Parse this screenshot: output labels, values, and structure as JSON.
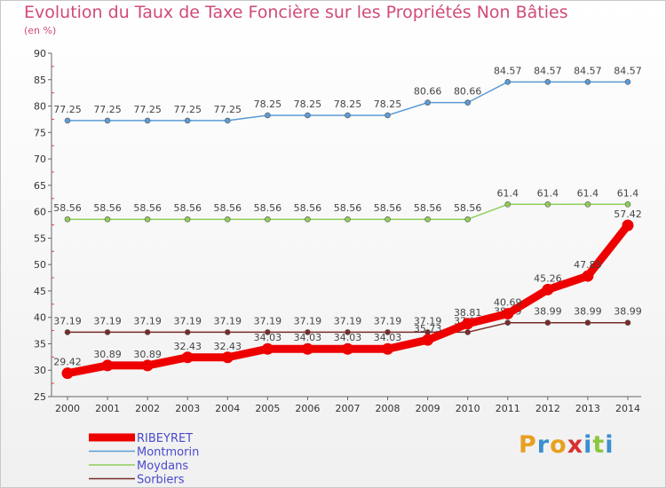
{
  "title": "Evolution du Taux de Taxe Foncière sur les Propriétés Non Bâties",
  "subtitle": "(en %)",
  "logo": {
    "text": "Proxiti",
    "letter_colors": [
      "#e8a020",
      "#3a8fd0",
      "#e8a020",
      "#d83030",
      "#3a8fd0",
      "#8cc63f",
      "#3a8fd0"
    ]
  },
  "chart_data": {
    "type": "line",
    "x": [
      "2000",
      "2001",
      "2002",
      "2003",
      "2004",
      "2005",
      "2006",
      "2007",
      "2008",
      "2009",
      "2010",
      "2011",
      "2012",
      "2013",
      "2014"
    ],
    "ylim": [
      25,
      90
    ],
    "yticks": [
      "25",
      "30",
      "35",
      "40",
      "45",
      "50",
      "55",
      "60",
      "65",
      "70",
      "75",
      "80",
      "85",
      "90"
    ],
    "grid": false,
    "legend_position": "bottom-left",
    "series": [
      {
        "name": "Montmorin",
        "color": "#5b9bd5",
        "values": [
          77.25,
          77.25,
          77.25,
          77.25,
          77.25,
          78.25,
          78.25,
          78.25,
          78.25,
          80.66,
          80.66,
          84.57,
          84.57,
          84.57,
          84.57
        ],
        "labels": [
          "77.25",
          "77.25",
          "77.25",
          "77.25",
          "77.25",
          "78.25",
          "78.25",
          "78.25",
          "78.25",
          "80.66",
          "80.66",
          "84.57",
          "84.57",
          "84.57",
          "84.57"
        ]
      },
      {
        "name": "Moydans",
        "color": "#8fce5a",
        "values": [
          58.56,
          58.56,
          58.56,
          58.56,
          58.56,
          58.56,
          58.56,
          58.56,
          58.56,
          58.56,
          58.56,
          61.4,
          61.4,
          61.4,
          61.4
        ],
        "labels": [
          "58.56",
          "58.56",
          "58.56",
          "58.56",
          "58.56",
          "58.56",
          "58.56",
          "58.56",
          "58.56",
          "58.56",
          "58.56",
          "61.4",
          "61.4",
          "61.4",
          "61.4"
        ]
      },
      {
        "name": "Sorbiers",
        "color": "#7a2a2a",
        "values": [
          37.19,
          37.19,
          37.19,
          37.19,
          37.19,
          37.19,
          37.19,
          37.19,
          37.19,
          37.19,
          37.19,
          38.99,
          38.99,
          38.99,
          38.99
        ],
        "labels": [
          "37.19",
          "37.19",
          "37.19",
          "37.19",
          "37.19",
          "37.19",
          "37.19",
          "37.19",
          "37.19",
          "37.19",
          "37.19",
          "38.99",
          "38.99",
          "38.99",
          "38.99"
        ]
      },
      {
        "name": "RIBEYRET",
        "color": "#ee0000",
        "values": [
          29.42,
          30.89,
          30.89,
          32.43,
          32.43,
          34.03,
          34.03,
          34.03,
          34.03,
          35.73,
          38.81,
          40.69,
          45.26,
          47.83,
          57.42
        ],
        "labels": [
          "29.42",
          "30.89",
          "30.89",
          "32.43",
          "32.43",
          "34.03",
          "34.03",
          "34.03",
          "34.03",
          "35.73",
          "38.81",
          "40.69",
          "45.26",
          "47.83",
          "57.42"
        ]
      }
    ],
    "legend": [
      {
        "name": "RIBEYRET",
        "color": "#ee0000"
      },
      {
        "name": "Montmorin",
        "color": "#5b9bd5"
      },
      {
        "name": "Moydans",
        "color": "#8fce5a"
      },
      {
        "name": "Sorbiers",
        "color": "#7a2a2a"
      }
    ]
  }
}
